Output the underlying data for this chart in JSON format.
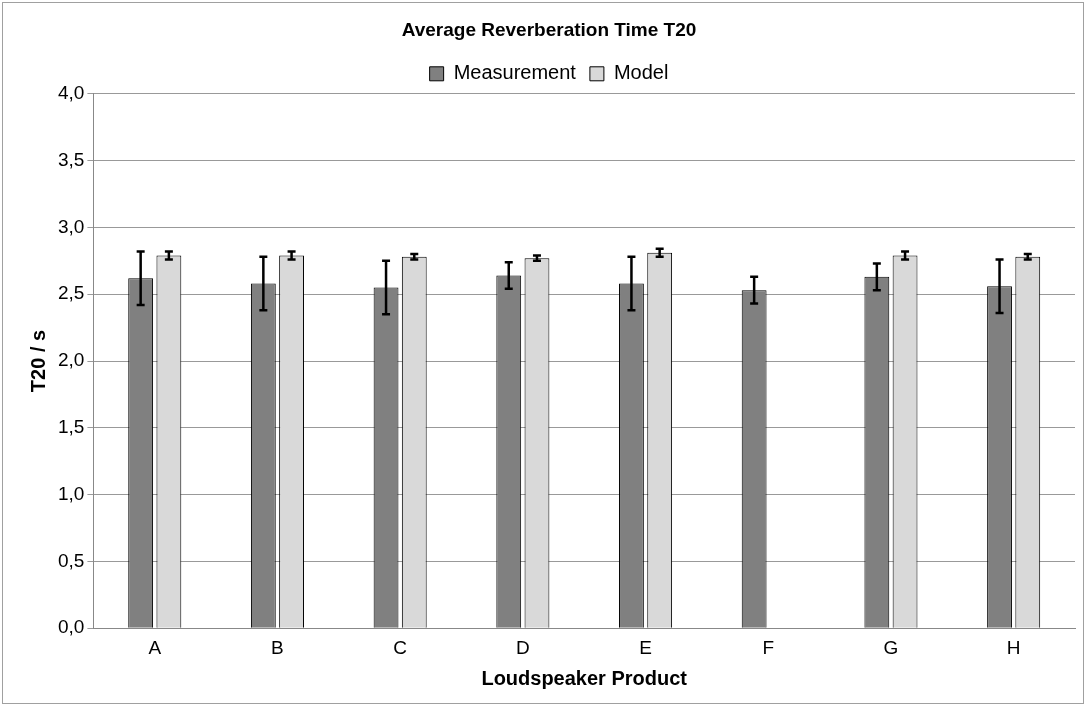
{
  "chart_data": {
    "type": "bar",
    "title": "Average Reverberation Time T20",
    "xlabel": "Loudspeaker Product",
    "ylabel": "T20 / s",
    "categories": [
      "A",
      "B",
      "C",
      "D",
      "E",
      "F",
      "G",
      "H"
    ],
    "series": [
      {
        "name": "Measurement",
        "color": "#808080",
        "values": [
          2.62,
          2.58,
          2.55,
          2.64,
          2.58,
          2.53,
          2.63,
          2.56
        ],
        "errors": [
          0.2,
          0.2,
          0.2,
          0.1,
          0.2,
          0.1,
          0.1,
          0.2
        ]
      },
      {
        "name": "Model",
        "color": "#d9d9d9",
        "values": [
          2.79,
          2.79,
          2.78,
          2.77,
          2.81,
          null,
          2.79,
          2.78
        ],
        "errors": [
          0.03,
          0.03,
          0.02,
          0.02,
          0.03,
          null,
          0.03,
          0.02
        ]
      }
    ],
    "ylim": [
      0,
      4
    ],
    "yticks": [
      {
        "value": 0,
        "label": "0,0"
      },
      {
        "value": 0.5,
        "label": "0,5"
      },
      {
        "value": 1,
        "label": "1,0"
      },
      {
        "value": 1.5,
        "label": "1,5"
      },
      {
        "value": 2,
        "label": "2,0"
      },
      {
        "value": 2.5,
        "label": "2,5"
      },
      {
        "value": 3,
        "label": "3,0"
      },
      {
        "value": 3.5,
        "label": "3,5"
      },
      {
        "value": 4,
        "label": "4,0"
      }
    ],
    "grid": "y",
    "legend": "top"
  }
}
